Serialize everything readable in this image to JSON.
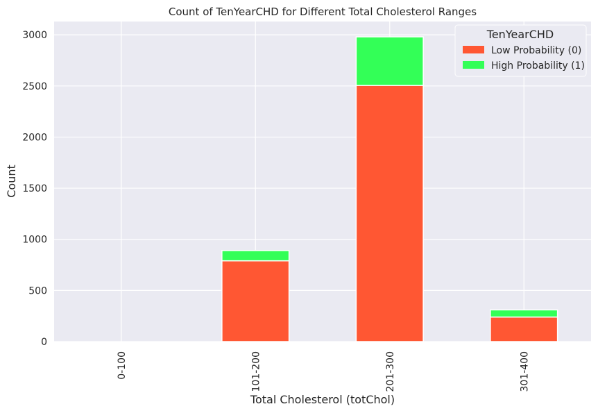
{
  "chart_data": {
    "type": "bar",
    "stacked": true,
    "title": "Count of TenYearCHD for Different Total Cholesterol Ranges",
    "xlabel": "Total Cholesterol (totChol)",
    "ylabel": "Count",
    "categories": [
      "0-100",
      "101-200",
      "201-300",
      "301-400"
    ],
    "series": [
      {
        "name": "Low Probability (0)",
        "values": [
          0,
          790,
          2505,
          240
        ],
        "color": "#ff5733"
      },
      {
        "name": "High Probability (1)",
        "values": [
          0,
          100,
          475,
          70
        ],
        "color": "#33ff57"
      }
    ],
    "ylim": [
      0,
      3130
    ],
    "yticks": [
      0,
      500,
      1000,
      1500,
      2000,
      2500,
      3000
    ],
    "legend": {
      "title": "TenYearCHD",
      "position": "top-right"
    },
    "grid": true,
    "background": "#eaeaf2"
  }
}
